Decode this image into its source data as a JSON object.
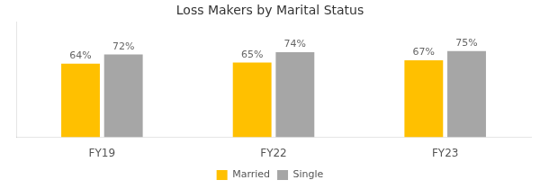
{
  "chart_data": {
    "type": "bar",
    "title": "Loss Makers by Marital Status",
    "categories": [
      "FY19",
      "FY22",
      "FY23"
    ],
    "series": [
      {
        "name": "Married",
        "color": "#FFC000",
        "values": [
          64,
          65,
          67
        ],
        "value_labels": [
          "64%",
          "65%",
          "67%"
        ]
      },
      {
        "name": "Single",
        "color": "#A6A6A6",
        "values": [
          72,
          74,
          75
        ],
        "value_labels": [
          "72%",
          "74%",
          "75%"
        ]
      }
    ],
    "ylim": [
      0,
      100
    ],
    "grid": false,
    "legend": "bottom",
    "data_labels": true,
    "tick_labels": "x"
  }
}
